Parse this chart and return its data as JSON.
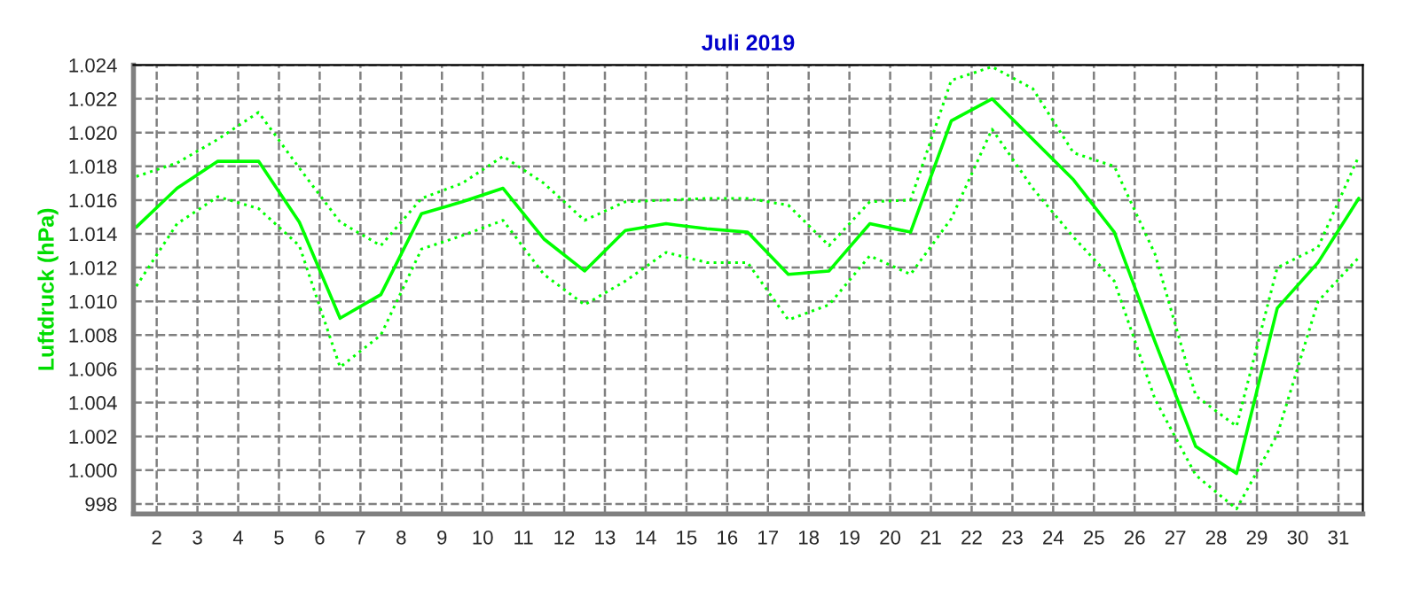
{
  "chart_data": {
    "type": "line",
    "title": "Juli 2019",
    "ylabel": "Luftdruck (hPa)",
    "x": [
      1.5,
      2.5,
      3.5,
      4.5,
      5.5,
      6.5,
      7.5,
      8.5,
      9.5,
      10.5,
      11.5,
      12.5,
      13.5,
      14.5,
      15.5,
      16.5,
      17.5,
      18.5,
      19.5,
      20.5,
      21.5,
      22.5,
      23.5,
      24.5,
      25.5,
      26.5,
      27.5,
      28.5,
      29.5,
      30.5,
      31.5
    ],
    "series": [
      {
        "color": "#00ff00",
        "line_style": "dotted",
        "values": [
          1017.4,
          1018.2,
          1019.6,
          1021.2,
          1017.9,
          1014.7,
          1013.3,
          1016.1,
          1017.0,
          1018.6,
          1017.0,
          1014.8,
          1015.9,
          1016.0,
          1016.1,
          1016.1,
          1015.7,
          1013.3,
          1015.9,
          1016.0,
          1023.1,
          1023.9,
          1022.6,
          1018.8,
          1018.0,
          1012.8,
          1004.4,
          1002.6,
          1012.0,
          1013.2,
          1018.6
        ]
      },
      {
        "color": "#00ff00",
        "line_style": "solid",
        "values": [
          1014.4,
          1016.7,
          1018.3,
          1018.3,
          1014.7,
          1009.0,
          1010.4,
          1015.2,
          1015.9,
          1016.7,
          1013.7,
          1011.8,
          1014.2,
          1014.6,
          1014.3,
          1014.1,
          1011.6,
          1011.8,
          1014.6,
          1014.1,
          1020.7,
          1022.0,
          1019.6,
          1017.2,
          1014.1,
          1007.6,
          1001.4,
          999.8,
          1009.6,
          1012.3,
          1016.1
        ]
      },
      {
        "color": "#00ff00",
        "line_style": "dotted",
        "values": [
          1010.9,
          1014.6,
          1016.2,
          1015.5,
          1013.3,
          1006.1,
          1008.0,
          1013.1,
          1013.9,
          1014.8,
          1011.6,
          1009.8,
          1011.2,
          1012.9,
          1012.3,
          1012.3,
          1008.9,
          1009.8,
          1012.7,
          1011.6,
          1014.9,
          1020.2,
          1016.7,
          1013.8,
          1011.2,
          1004.2,
          999.7,
          997.7,
          1002.1,
          1010.0,
          1012.6
        ]
      }
    ],
    "xlim": [
      1.43,
      31.6
    ],
    "xticks": [
      2,
      3,
      4,
      5,
      6,
      7,
      8,
      9,
      10,
      11,
      12,
      13,
      14,
      15,
      16,
      17,
      18,
      19,
      20,
      21,
      22,
      23,
      24,
      25,
      26,
      27,
      28,
      29,
      30,
      31
    ],
    "ylim": [
      997.4,
      1024
    ],
    "yticks": [
      {
        "value": 998,
        "label": "998"
      },
      {
        "value": 1000,
        "label": "1.000"
      },
      {
        "value": 1002,
        "label": "1.002"
      },
      {
        "value": 1004,
        "label": "1.004"
      },
      {
        "value": 1006,
        "label": "1.006"
      },
      {
        "value": 1008,
        "label": "1.008"
      },
      {
        "value": 1010,
        "label": "1.010"
      },
      {
        "value": 1012,
        "label": "1.012"
      },
      {
        "value": 1014,
        "label": "1.014"
      },
      {
        "value": 1016,
        "label": "1.016"
      },
      {
        "value": 1018,
        "label": "1.018"
      },
      {
        "value": 1020,
        "label": "1.020"
      },
      {
        "value": 1022,
        "label": "1.022"
      },
      {
        "value": 1024,
        "label": "1.024"
      }
    ],
    "grid": true,
    "legend": false
  }
}
